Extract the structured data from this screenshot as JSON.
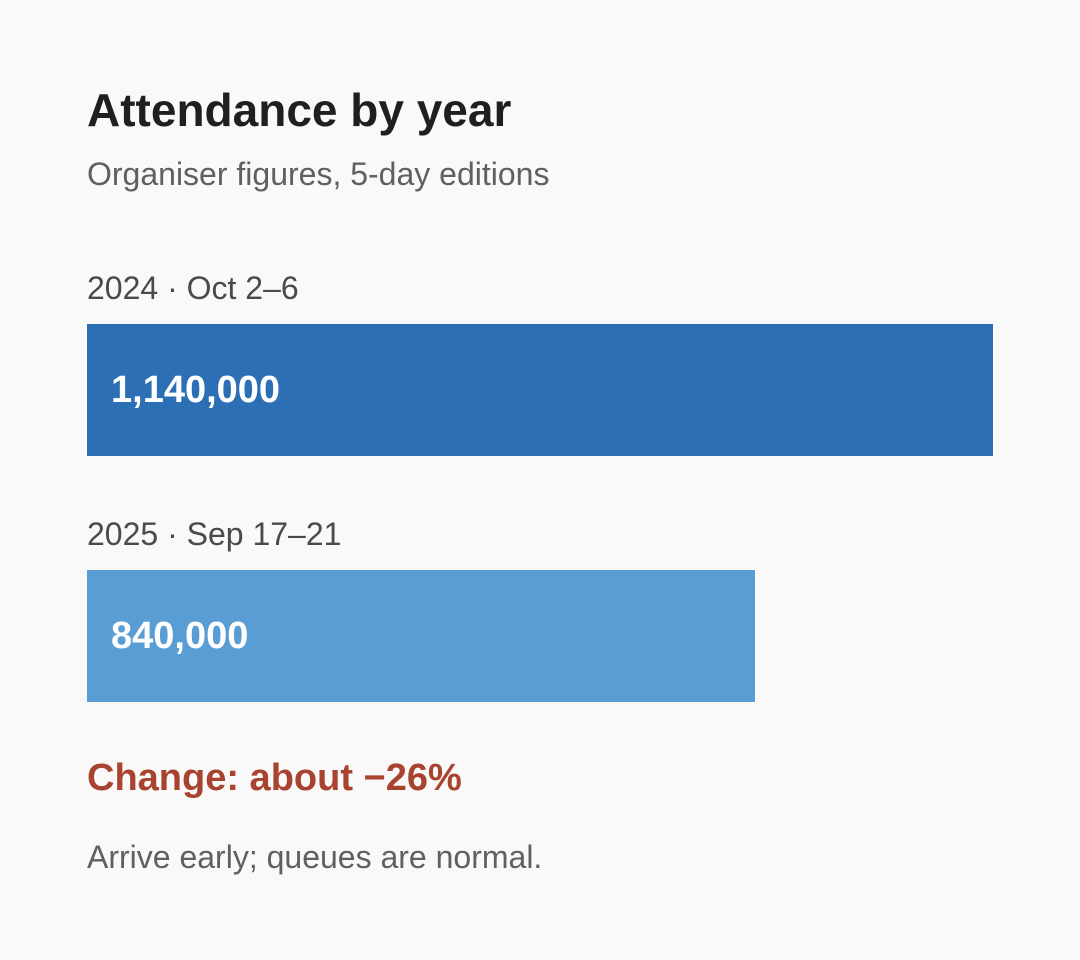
{
  "title": "Attendance by year",
  "subtitle": "Organiser figures, 5-day editions",
  "chart_data": {
    "type": "bar",
    "orientation": "horizontal",
    "categories": [
      "2024 · Oct 2–6",
      "2025 · Sep 17–21"
    ],
    "values": [
      1140000,
      840000
    ],
    "value_labels": [
      "1,140,000",
      "840,000"
    ],
    "colors": [
      "#2d6fb5",
      "#5a9cd4"
    ],
    "xlim": [
      0,
      1140000
    ]
  },
  "change_text": "Change: about −26%",
  "change_color": "#a8432f",
  "note": "Arrive early; queues are normal."
}
